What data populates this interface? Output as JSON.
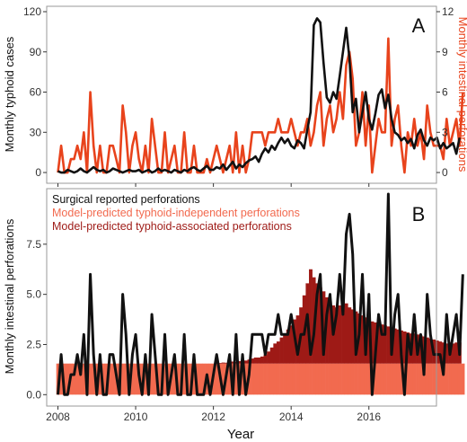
{
  "figure": {
    "xlabel": "Year"
  },
  "colors": {
    "black_series": "#111111",
    "red_series": "#e8431c",
    "independent_fill": "#f26a4f",
    "associated_fill": "#9e1a16",
    "panel_border": "#9a9a9a",
    "tick_text": "#333333"
  },
  "chart_data": [
    {
      "id": "A",
      "type": "line",
      "panel_label": "A",
      "ylabel": "Monthly typhoid cases",
      "y2label": "Monthly intestinal perforations",
      "xlabel": "Year",
      "x_start": "2008-01",
      "x_step": "month",
      "xlim": [
        2007.85,
        2017.6
      ],
      "xticks": [
        "2008",
        "2010",
        "2012",
        "2014",
        "2016"
      ],
      "ylim": [
        -4,
        120
      ],
      "yticks": [
        "0",
        "30",
        "60",
        "90",
        "120"
      ],
      "y2lim": [
        -0.4,
        12
      ],
      "y2ticks": [
        "0",
        "3",
        "6",
        "9",
        "12"
      ],
      "grid": false,
      "series": [
        {
          "axis": "left",
          "color": "#111111",
          "values": [
            1,
            0,
            0,
            2,
            1,
            0,
            1,
            3,
            1,
            0,
            2,
            4,
            2,
            1,
            2,
            0,
            1,
            3,
            2,
            1,
            0,
            1,
            2,
            1,
            1,
            2,
            0,
            1,
            2,
            0,
            1,
            3,
            1,
            2,
            1,
            0,
            2,
            1,
            0,
            2,
            1,
            3,
            4,
            2,
            1,
            3,
            5,
            2,
            2,
            4,
            3,
            6,
            2,
            5,
            8,
            3,
            6,
            4,
            7,
            9,
            10,
            12,
            8,
            14,
            18,
            15,
            20,
            17,
            22,
            26,
            22,
            25,
            20,
            18,
            24,
            22,
            18,
            32,
            45,
            110,
            115,
            112,
            82,
            56,
            52,
            60,
            55,
            72,
            90,
            108,
            85,
            45,
            55,
            30,
            45,
            60,
            40,
            32,
            44,
            58,
            62,
            48,
            58,
            40,
            30,
            28,
            24,
            26,
            22,
            25,
            18,
            28,
            32,
            24,
            20,
            26,
            24,
            26,
            18,
            22,
            18,
            20,
            22,
            14,
            26
          ]
        },
        {
          "axis": "right",
          "color": "#e8431c",
          "values": [
            0,
            2,
            0,
            0,
            1,
            1,
            2,
            1,
            3,
            0,
            6,
            2,
            0,
            2,
            0,
            0,
            2,
            2,
            1,
            0,
            5,
            3,
            0,
            2,
            3,
            1,
            0,
            2,
            0,
            4,
            2,
            0,
            0,
            3,
            0,
            1,
            2,
            0,
            0,
            3,
            0,
            0,
            2,
            0,
            0,
            0,
            1,
            0,
            1,
            2,
            1,
            0,
            1,
            2,
            0,
            3,
            0,
            2,
            0,
            1,
            3,
            3,
            3,
            3,
            2,
            3,
            3,
            3,
            4,
            3,
            3,
            3,
            4,
            3,
            2,
            3,
            3,
            4,
            2,
            3,
            5,
            6,
            2,
            4,
            5,
            3,
            4,
            6,
            4,
            8,
            9,
            7,
            2,
            3,
            6,
            2,
            5,
            0,
            2,
            4,
            3,
            3,
            10,
            2,
            4,
            5,
            2,
            0,
            3,
            2,
            4,
            2,
            3,
            1,
            5,
            3,
            2,
            2,
            2,
            1,
            4,
            2,
            3,
            4,
            2,
            6
          ]
        }
      ]
    },
    {
      "id": "B",
      "type": "bar",
      "panel_label": "B",
      "ylabel": "Monthly intestinal perforations",
      "xlabel": "Year",
      "x_start": "2008-01",
      "x_step": "month",
      "xlim": [
        2007.85,
        2017.6
      ],
      "xticks": [
        "2008",
        "2010",
        "2012",
        "2014",
        "2016"
      ],
      "ylim": [
        -0.3,
        10
      ],
      "yticks": [
        "0.0",
        "2.5",
        "5.0",
        "7.5"
      ],
      "legend_position": "top-left",
      "legend": [
        {
          "label": "Surgical reported perforations",
          "color": "#111111"
        },
        {
          "label": "Model-predicted typhoid-independent perforations",
          "color": "#f26a4f"
        },
        {
          "label": "Model-predicted typhoid-associated perforations",
          "color": "#9e1a16"
        }
      ],
      "independent_value": 1.55,
      "typhoid_associated": [
        0,
        0,
        0,
        0,
        0,
        0,
        0,
        0,
        0,
        0,
        0,
        0,
        0,
        0,
        0,
        0,
        0,
        0,
        0,
        0,
        0,
        0,
        0,
        0,
        0,
        0,
        0,
        0,
        0,
        0,
        0,
        0,
        0,
        0,
        0,
        0,
        0,
        0,
        0,
        0,
        0,
        0,
        0,
        0,
        0,
        0,
        0,
        0,
        0,
        0.02,
        0.03,
        0.05,
        0.04,
        0.05,
        0.1,
        0.08,
        0.12,
        0.1,
        0.15,
        0.2,
        0.25,
        0.3,
        0.3,
        0.35,
        0.45,
        0.6,
        0.8,
        1.0,
        1.1,
        1.3,
        1.5,
        1.7,
        1.9,
        2.2,
        2.4,
        2.8,
        3.4,
        4.0,
        4.7,
        4.3,
        4.0,
        3.8,
        3.6,
        3.3,
        3.1,
        2.9,
        2.8,
        2.9,
        3.1,
        3.0,
        2.8,
        2.7,
        2.6,
        2.5,
        2.4,
        2.3,
        2.2,
        2.1,
        2.05,
        2.0,
        1.95,
        1.9,
        1.85,
        1.8,
        1.75,
        1.7,
        1.65,
        1.6,
        1.55,
        1.5,
        1.5,
        1.45,
        1.4,
        1.35,
        1.3,
        1.25,
        1.2,
        1.15,
        1.1,
        1.05,
        1.0,
        1.05,
        1.0,
        1.05,
        1.05
      ],
      "surgical_reported": [
        0,
        2,
        0,
        0,
        1,
        1,
        2,
        1,
        3,
        0,
        6,
        2,
        0,
        2,
        0,
        0,
        2,
        2,
        1,
        0,
        5,
        3,
        0,
        2,
        3,
        1,
        0,
        2,
        0,
        4,
        2,
        0,
        0,
        3,
        0,
        1,
        2,
        0,
        0,
        3,
        0,
        0,
        2,
        0,
        0,
        0,
        1,
        0,
        1,
        2,
        1,
        0,
        1,
        2,
        0,
        3,
        0,
        2,
        0,
        1,
        3,
        3,
        3,
        3,
        2,
        3,
        3,
        3,
        4,
        3,
        3,
        3,
        4,
        3,
        2,
        3,
        3,
        4,
        2,
        3,
        5,
        6,
        2,
        4,
        5,
        3,
        4,
        6,
        4,
        8,
        9,
        7,
        2,
        3,
        6,
        2,
        5,
        0,
        2,
        4,
        3,
        3,
        10,
        2,
        4,
        5,
        2,
        0,
        3,
        2,
        4,
        2,
        3,
        1,
        5,
        3,
        2,
        2,
        2,
        1,
        4,
        2,
        3,
        4,
        2,
        6
      ]
    }
  ]
}
